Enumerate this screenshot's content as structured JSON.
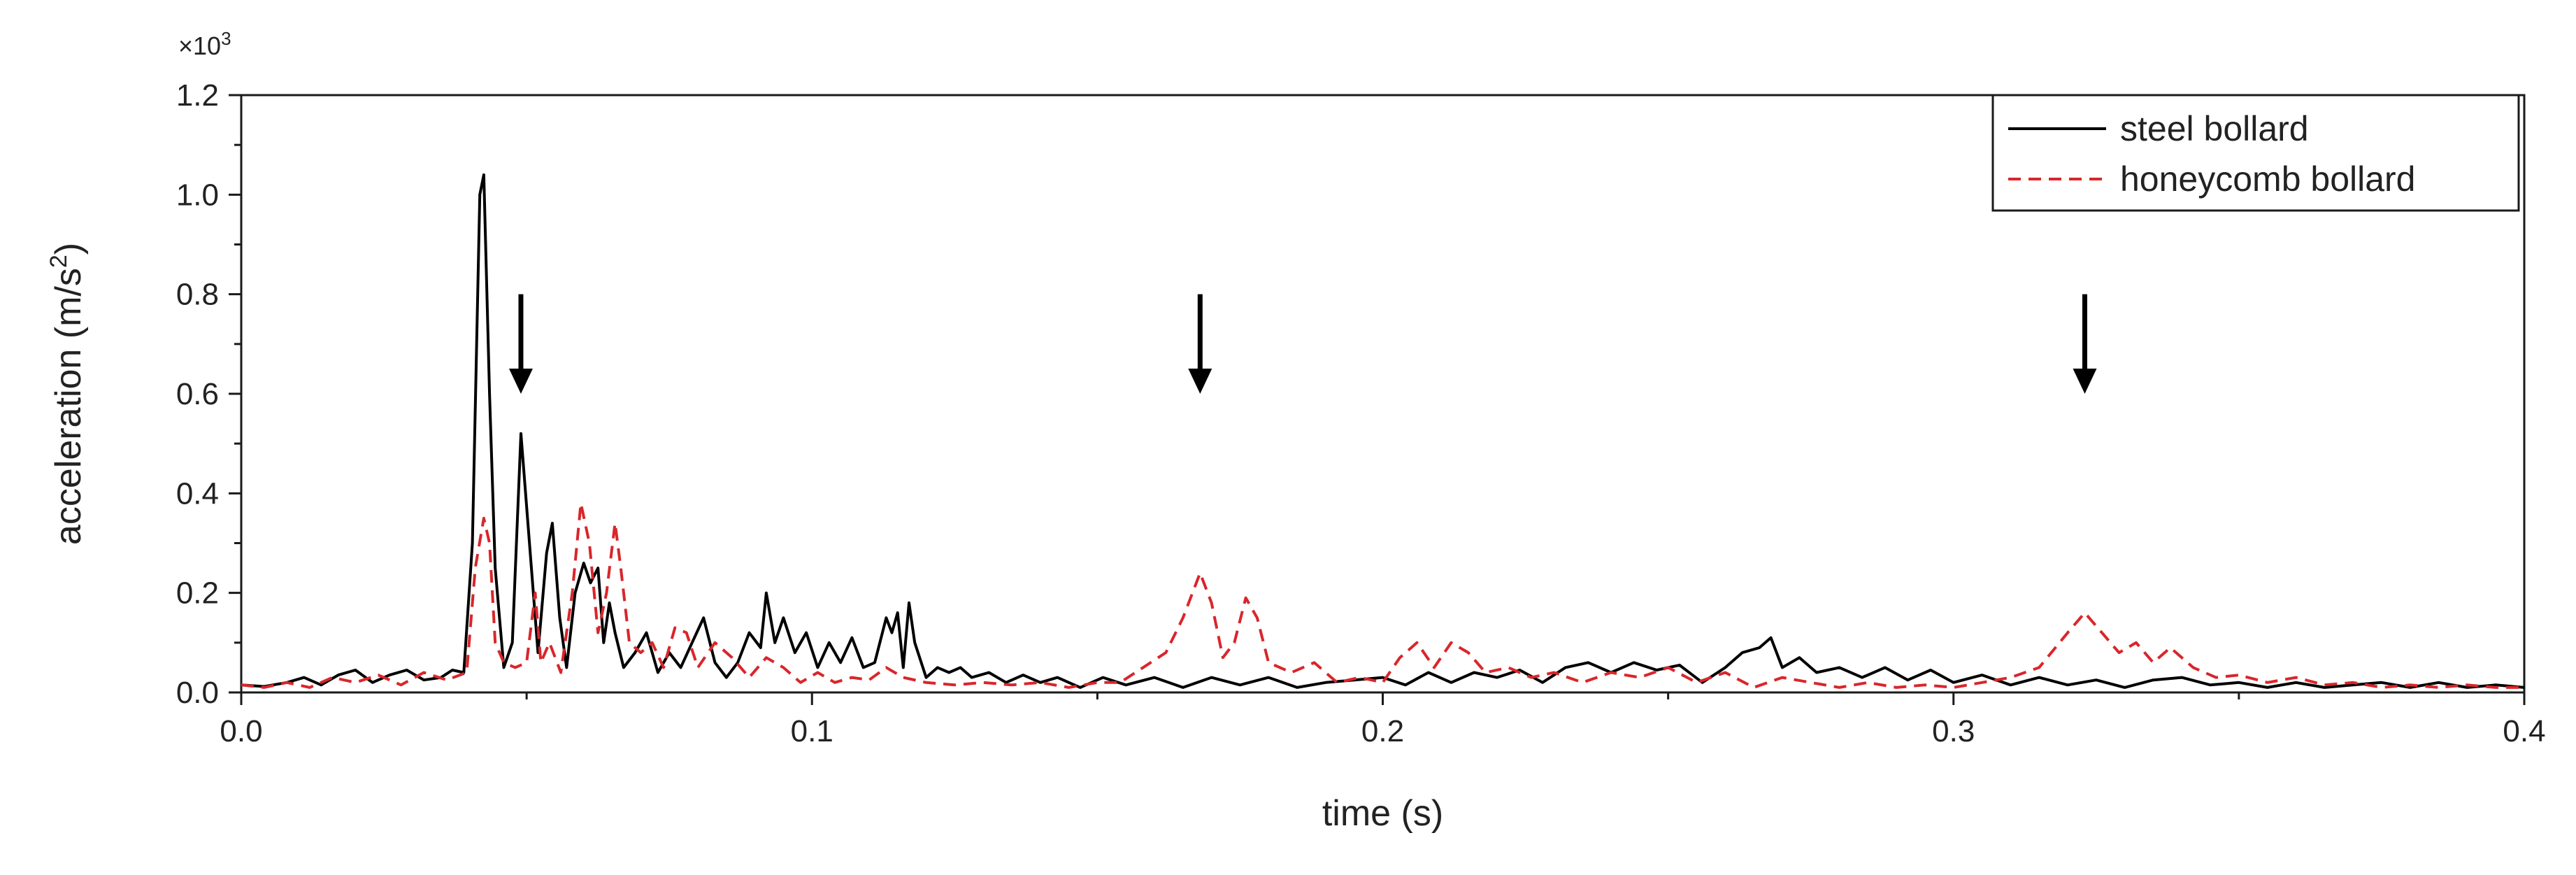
{
  "chart_data": {
    "type": "line",
    "title": "",
    "xlabel": "time (s)",
    "ylabel_main": "acceleration (m/s",
    "ylabel_sup": "2",
    "ylabel_close": ")",
    "y_multiplier_base": "×10",
    "y_multiplier_exp": "3",
    "xlim": [
      0.0,
      0.4
    ],
    "ylim": [
      0.0,
      1.2
    ],
    "x_ticks": [
      0.0,
      0.1,
      0.2,
      0.3,
      0.4
    ],
    "x_tick_labels": [
      "0.0",
      "0.1",
      "0.2",
      "0.3",
      "0.4"
    ],
    "y_ticks": [
      0.0,
      0.2,
      0.4,
      0.6,
      0.8,
      1.0,
      1.2
    ],
    "y_tick_labels": [
      "0.0",
      "0.2",
      "0.4",
      "0.6",
      "0.8",
      "1.0",
      "1.2"
    ],
    "grid": false,
    "legend_position": "top-right",
    "annotations": [
      {
        "type": "arrow-down",
        "x": 0.049,
        "y_top": 0.8,
        "y_bottom": 0.6
      },
      {
        "type": "arrow-down",
        "x": 0.168,
        "y_top": 0.8,
        "y_bottom": 0.6
      },
      {
        "type": "arrow-down",
        "x": 0.323,
        "y_top": 0.8,
        "y_bottom": 0.6
      }
    ],
    "series": [
      {
        "name": "steel bollard",
        "color": "#000000",
        "dash": "solid",
        "points": [
          [
            0.0,
            0.015
          ],
          [
            0.004,
            0.012
          ],
          [
            0.008,
            0.02
          ],
          [
            0.011,
            0.03
          ],
          [
            0.014,
            0.015
          ],
          [
            0.017,
            0.035
          ],
          [
            0.02,
            0.045
          ],
          [
            0.023,
            0.02
          ],
          [
            0.026,
            0.035
          ],
          [
            0.029,
            0.045
          ],
          [
            0.032,
            0.025
          ],
          [
            0.035,
            0.03
          ],
          [
            0.037,
            0.045
          ],
          [
            0.039,
            0.04
          ],
          [
            0.0405,
            0.3
          ],
          [
            0.0418,
            1.0
          ],
          [
            0.0425,
            1.04
          ],
          [
            0.0435,
            0.6
          ],
          [
            0.0445,
            0.25
          ],
          [
            0.046,
            0.05
          ],
          [
            0.0475,
            0.1
          ],
          [
            0.049,
            0.52
          ],
          [
            0.0505,
            0.3
          ],
          [
            0.052,
            0.08
          ],
          [
            0.0535,
            0.28
          ],
          [
            0.0545,
            0.34
          ],
          [
            0.0558,
            0.15
          ],
          [
            0.057,
            0.05
          ],
          [
            0.0585,
            0.2
          ],
          [
            0.06,
            0.26
          ],
          [
            0.0612,
            0.22
          ],
          [
            0.0625,
            0.25
          ],
          [
            0.0635,
            0.1
          ],
          [
            0.0645,
            0.18
          ],
          [
            0.0655,
            0.12
          ],
          [
            0.067,
            0.05
          ],
          [
            0.069,
            0.08
          ],
          [
            0.071,
            0.12
          ],
          [
            0.073,
            0.04
          ],
          [
            0.075,
            0.08
          ],
          [
            0.077,
            0.05
          ],
          [
            0.079,
            0.1
          ],
          [
            0.081,
            0.15
          ],
          [
            0.083,
            0.06
          ],
          [
            0.085,
            0.03
          ],
          [
            0.087,
            0.06
          ],
          [
            0.089,
            0.12
          ],
          [
            0.091,
            0.09
          ],
          [
            0.092,
            0.2
          ],
          [
            0.0935,
            0.1
          ],
          [
            0.095,
            0.15
          ],
          [
            0.097,
            0.08
          ],
          [
            0.099,
            0.12
          ],
          [
            0.101,
            0.05
          ],
          [
            0.103,
            0.1
          ],
          [
            0.105,
            0.06
          ],
          [
            0.107,
            0.11
          ],
          [
            0.109,
            0.05
          ],
          [
            0.111,
            0.06
          ],
          [
            0.113,
            0.15
          ],
          [
            0.114,
            0.12
          ],
          [
            0.115,
            0.16
          ],
          [
            0.116,
            0.05
          ],
          [
            0.117,
            0.18
          ],
          [
            0.118,
            0.1
          ],
          [
            0.12,
            0.03
          ],
          [
            0.122,
            0.05
          ],
          [
            0.124,
            0.04
          ],
          [
            0.126,
            0.05
          ],
          [
            0.128,
            0.03
          ],
          [
            0.131,
            0.04
          ],
          [
            0.134,
            0.02
          ],
          [
            0.137,
            0.035
          ],
          [
            0.14,
            0.02
          ],
          [
            0.143,
            0.03
          ],
          [
            0.147,
            0.01
          ],
          [
            0.151,
            0.03
          ],
          [
            0.155,
            0.015
          ],
          [
            0.16,
            0.03
          ],
          [
            0.165,
            0.01
          ],
          [
            0.17,
            0.03
          ],
          [
            0.175,
            0.015
          ],
          [
            0.18,
            0.03
          ],
          [
            0.185,
            0.01
          ],
          [
            0.19,
            0.02
          ],
          [
            0.195,
            0.025
          ],
          [
            0.2,
            0.03
          ],
          [
            0.204,
            0.015
          ],
          [
            0.208,
            0.04
          ],
          [
            0.212,
            0.02
          ],
          [
            0.216,
            0.04
          ],
          [
            0.22,
            0.03
          ],
          [
            0.224,
            0.045
          ],
          [
            0.228,
            0.02
          ],
          [
            0.232,
            0.05
          ],
          [
            0.236,
            0.06
          ],
          [
            0.24,
            0.04
          ],
          [
            0.244,
            0.06
          ],
          [
            0.248,
            0.045
          ],
          [
            0.252,
            0.055
          ],
          [
            0.256,
            0.02
          ],
          [
            0.26,
            0.05
          ],
          [
            0.263,
            0.08
          ],
          [
            0.266,
            0.09
          ],
          [
            0.268,
            0.11
          ],
          [
            0.27,
            0.05
          ],
          [
            0.273,
            0.07
          ],
          [
            0.276,
            0.04
          ],
          [
            0.28,
            0.05
          ],
          [
            0.284,
            0.03
          ],
          [
            0.288,
            0.05
          ],
          [
            0.292,
            0.025
          ],
          [
            0.296,
            0.045
          ],
          [
            0.3,
            0.02
          ],
          [
            0.305,
            0.035
          ],
          [
            0.31,
            0.015
          ],
          [
            0.315,
            0.03
          ],
          [
            0.32,
            0.015
          ],
          [
            0.325,
            0.025
          ],
          [
            0.33,
            0.01
          ],
          [
            0.335,
            0.025
          ],
          [
            0.34,
            0.03
          ],
          [
            0.345,
            0.015
          ],
          [
            0.35,
            0.02
          ],
          [
            0.355,
            0.01
          ],
          [
            0.36,
            0.02
          ],
          [
            0.365,
            0.01
          ],
          [
            0.37,
            0.015
          ],
          [
            0.375,
            0.02
          ],
          [
            0.38,
            0.01
          ],
          [
            0.385,
            0.02
          ],
          [
            0.39,
            0.01
          ],
          [
            0.395,
            0.015
          ],
          [
            0.4,
            0.01
          ]
        ]
      },
      {
        "name": "honeycomb bollard",
        "color": "#d9262b",
        "dash": "dashed",
        "points": [
          [
            0.0,
            0.015
          ],
          [
            0.004,
            0.01
          ],
          [
            0.008,
            0.02
          ],
          [
            0.012,
            0.01
          ],
          [
            0.016,
            0.03
          ],
          [
            0.02,
            0.02
          ],
          [
            0.024,
            0.035
          ],
          [
            0.028,
            0.015
          ],
          [
            0.032,
            0.04
          ],
          [
            0.036,
            0.025
          ],
          [
            0.0395,
            0.04
          ],
          [
            0.041,
            0.25
          ],
          [
            0.0425,
            0.35
          ],
          [
            0.0435,
            0.3
          ],
          [
            0.0445,
            0.1
          ],
          [
            0.046,
            0.06
          ],
          [
            0.048,
            0.05
          ],
          [
            0.05,
            0.06
          ],
          [
            0.0515,
            0.2
          ],
          [
            0.0525,
            0.06
          ],
          [
            0.054,
            0.1
          ],
          [
            0.056,
            0.04
          ],
          [
            0.058,
            0.2
          ],
          [
            0.0595,
            0.38
          ],
          [
            0.061,
            0.3
          ],
          [
            0.0625,
            0.12
          ],
          [
            0.064,
            0.2
          ],
          [
            0.0655,
            0.34
          ],
          [
            0.0665,
            0.25
          ],
          [
            0.068,
            0.1
          ],
          [
            0.07,
            0.08
          ],
          [
            0.072,
            0.1
          ],
          [
            0.074,
            0.05
          ],
          [
            0.076,
            0.13
          ],
          [
            0.078,
            0.12
          ],
          [
            0.08,
            0.05
          ],
          [
            0.083,
            0.1
          ],
          [
            0.086,
            0.07
          ],
          [
            0.089,
            0.03
          ],
          [
            0.092,
            0.07
          ],
          [
            0.095,
            0.05
          ],
          [
            0.098,
            0.02
          ],
          [
            0.101,
            0.04
          ],
          [
            0.104,
            0.02
          ],
          [
            0.107,
            0.03
          ],
          [
            0.11,
            0.025
          ],
          [
            0.113,
            0.05
          ],
          [
            0.116,
            0.03
          ],
          [
            0.12,
            0.02
          ],
          [
            0.125,
            0.015
          ],
          [
            0.13,
            0.02
          ],
          [
            0.135,
            0.015
          ],
          [
            0.14,
            0.02
          ],
          [
            0.145,
            0.01
          ],
          [
            0.15,
            0.02
          ],
          [
            0.154,
            0.02
          ],
          [
            0.158,
            0.05
          ],
          [
            0.162,
            0.08
          ],
          [
            0.165,
            0.15
          ],
          [
            0.168,
            0.24
          ],
          [
            0.17,
            0.18
          ],
          [
            0.172,
            0.07
          ],
          [
            0.174,
            0.1
          ],
          [
            0.176,
            0.19
          ],
          [
            0.178,
            0.15
          ],
          [
            0.18,
            0.06
          ],
          [
            0.184,
            0.04
          ],
          [
            0.188,
            0.06
          ],
          [
            0.192,
            0.02
          ],
          [
            0.196,
            0.03
          ],
          [
            0.2,
            0.02
          ],
          [
            0.203,
            0.07
          ],
          [
            0.206,
            0.1
          ],
          [
            0.209,
            0.05
          ],
          [
            0.212,
            0.1
          ],
          [
            0.215,
            0.08
          ],
          [
            0.218,
            0.04
          ],
          [
            0.222,
            0.05
          ],
          [
            0.226,
            0.03
          ],
          [
            0.23,
            0.04
          ],
          [
            0.235,
            0.02
          ],
          [
            0.24,
            0.04
          ],
          [
            0.245,
            0.03
          ],
          [
            0.25,
            0.05
          ],
          [
            0.255,
            0.02
          ],
          [
            0.26,
            0.04
          ],
          [
            0.265,
            0.01
          ],
          [
            0.27,
            0.03
          ],
          [
            0.275,
            0.02
          ],
          [
            0.28,
            0.01
          ],
          [
            0.285,
            0.02
          ],
          [
            0.29,
            0.01
          ],
          [
            0.295,
            0.015
          ],
          [
            0.3,
            0.01
          ],
          [
            0.305,
            0.02
          ],
          [
            0.31,
            0.03
          ],
          [
            0.315,
            0.05
          ],
          [
            0.32,
            0.12
          ],
          [
            0.323,
            0.16
          ],
          [
            0.326,
            0.12
          ],
          [
            0.329,
            0.08
          ],
          [
            0.332,
            0.1
          ],
          [
            0.335,
            0.06
          ],
          [
            0.338,
            0.09
          ],
          [
            0.342,
            0.05
          ],
          [
            0.346,
            0.03
          ],
          [
            0.35,
            0.035
          ],
          [
            0.355,
            0.02
          ],
          [
            0.36,
            0.03
          ],
          [
            0.365,
            0.015
          ],
          [
            0.37,
            0.02
          ],
          [
            0.375,
            0.01
          ],
          [
            0.38,
            0.015
          ],
          [
            0.385,
            0.01
          ],
          [
            0.39,
            0.015
          ],
          [
            0.395,
            0.01
          ],
          [
            0.4,
            0.01
          ]
        ]
      }
    ]
  }
}
